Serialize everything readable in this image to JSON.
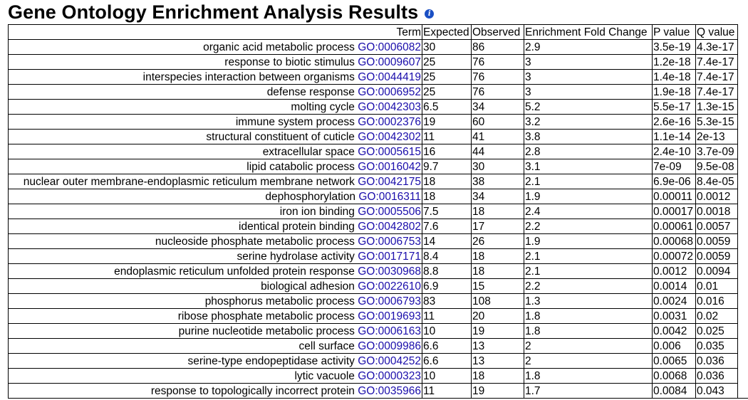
{
  "page": {
    "title": "Gene Ontology Enrichment Analysis Results",
    "info_icon": "info-icon"
  },
  "table": {
    "columns": [
      "Term",
      "Expected",
      "Observed",
      "Enrichment Fold Change",
      "P value",
      "Q value"
    ],
    "rows": [
      {
        "term": "organic acid metabolic process",
        "go": "GO:0006082",
        "expected": "30",
        "observed": "86",
        "fold": "2.9",
        "p": "3.5e-19",
        "q": "4.3e-17"
      },
      {
        "term": "response to biotic stimulus",
        "go": "GO:0009607",
        "expected": "25",
        "observed": "76",
        "fold": "3",
        "p": "1.2e-18",
        "q": "7.4e-17"
      },
      {
        "term": "interspecies interaction between organisms",
        "go": "GO:0044419",
        "expected": "25",
        "observed": "76",
        "fold": "3",
        "p": "1.4e-18",
        "q": "7.4e-17"
      },
      {
        "term": "defense response",
        "go": "GO:0006952",
        "expected": "25",
        "observed": "76",
        "fold": "3",
        "p": "1.9e-18",
        "q": "7.4e-17"
      },
      {
        "term": "molting cycle",
        "go": "GO:0042303",
        "expected": "6.5",
        "observed": "34",
        "fold": "5.2",
        "p": "5.5e-17",
        "q": "1.3e-15"
      },
      {
        "term": "immune system process",
        "go": "GO:0002376",
        "expected": "19",
        "observed": "60",
        "fold": "3.2",
        "p": "2.6e-16",
        "q": "5.3e-15"
      },
      {
        "term": "structural constituent of cuticle",
        "go": "GO:0042302",
        "expected": "11",
        "observed": "41",
        "fold": "3.8",
        "p": "1.1e-14",
        "q": "2e-13"
      },
      {
        "term": "extracellular space",
        "go": "GO:0005615",
        "expected": "16",
        "observed": "44",
        "fold": "2.8",
        "p": "2.4e-10",
        "q": "3.7e-09"
      },
      {
        "term": "lipid catabolic process",
        "go": "GO:0016042",
        "expected": "9.7",
        "observed": "30",
        "fold": "3.1",
        "p": "7e-09",
        "q": "9.5e-08"
      },
      {
        "term": "nuclear outer membrane-endoplasmic reticulum membrane network",
        "go": "GO:0042175",
        "expected": "18",
        "observed": "38",
        "fold": "2.1",
        "p": "6.9e-06",
        "q": "8.4e-05"
      },
      {
        "term": "dephosphorylation",
        "go": "GO:0016311",
        "expected": "18",
        "observed": "34",
        "fold": "1.9",
        "p": "0.00011",
        "q": "0.0012"
      },
      {
        "term": "iron ion binding",
        "go": "GO:0005506",
        "expected": "7.5",
        "observed": "18",
        "fold": "2.4",
        "p": "0.00017",
        "q": "0.0018"
      },
      {
        "term": "identical protein binding",
        "go": "GO:0042802",
        "expected": "7.6",
        "observed": "17",
        "fold": "2.2",
        "p": "0.00061",
        "q": "0.0057"
      },
      {
        "term": "nucleoside phosphate metabolic process",
        "go": "GO:0006753",
        "expected": "14",
        "observed": "26",
        "fold": "1.9",
        "p": "0.00068",
        "q": "0.0059"
      },
      {
        "term": "serine hydrolase activity",
        "go": "GO:0017171",
        "expected": "8.4",
        "observed": "18",
        "fold": "2.1",
        "p": "0.00072",
        "q": "0.0059"
      },
      {
        "term": "endoplasmic reticulum unfolded protein response",
        "go": "GO:0030968",
        "expected": "8.8",
        "observed": "18",
        "fold": "2.1",
        "p": "0.0012",
        "q": "0.0094"
      },
      {
        "term": "biological adhesion",
        "go": "GO:0022610",
        "expected": "6.9",
        "observed": "15",
        "fold": "2.2",
        "p": "0.0014",
        "q": "0.01"
      },
      {
        "term": "phosphorus metabolic process",
        "go": "GO:0006793",
        "expected": "83",
        "observed": "108",
        "fold": "1.3",
        "p": "0.0024",
        "q": "0.016"
      },
      {
        "term": "ribose phosphate metabolic process",
        "go": "GO:0019693",
        "expected": "11",
        "observed": "20",
        "fold": "1.8",
        "p": "0.0031",
        "q": "0.02"
      },
      {
        "term": "purine nucleotide metabolic process",
        "go": "GO:0006163",
        "expected": "10",
        "observed": "19",
        "fold": "1.8",
        "p": "0.0042",
        "q": "0.025"
      },
      {
        "term": "cell surface",
        "go": "GO:0009986",
        "expected": "6.6",
        "observed": "13",
        "fold": "2",
        "p": "0.006",
        "q": "0.035"
      },
      {
        "term": "serine-type endopeptidase activity",
        "go": "GO:0004252",
        "expected": "6.6",
        "observed": "13",
        "fold": "2",
        "p": "0.0065",
        "q": "0.036"
      },
      {
        "term": "lytic vacuole",
        "go": "GO:0000323",
        "expected": "10",
        "observed": "18",
        "fold": "1.8",
        "p": "0.0068",
        "q": "0.036"
      },
      {
        "term": "response to topologically incorrect protein",
        "go": "GO:0035966",
        "expected": "11",
        "observed": "19",
        "fold": "1.7",
        "p": "0.0084",
        "q": "0.043"
      }
    ]
  }
}
